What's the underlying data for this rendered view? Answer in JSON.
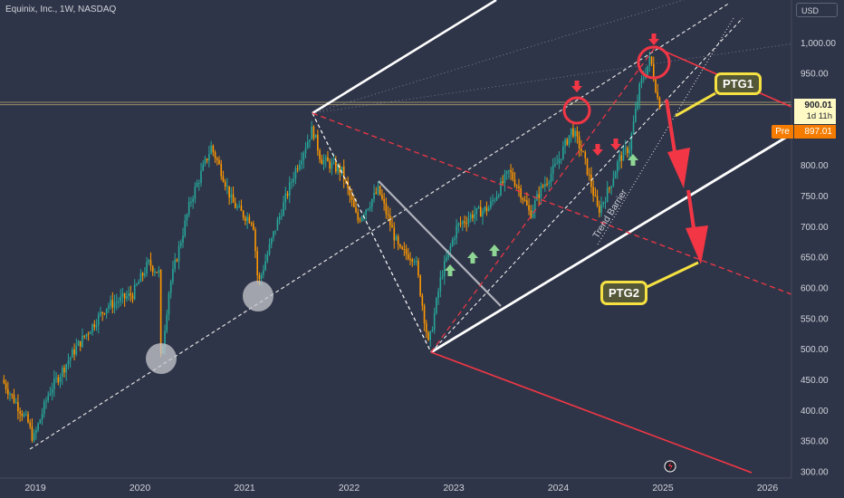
{
  "header": {
    "symbol_title": "Equinix, Inc., 1W, NASDAQ",
    "currency": "USD"
  },
  "price_tag": {
    "last_price": "900.01",
    "countdown": "1d 11h"
  },
  "pre_market": {
    "label": "Pre",
    "price": "897.01"
  },
  "annotations": {
    "ptg1": "PTG1",
    "ptg2": "PTG2",
    "trend_barrier": "Trend Barrier"
  },
  "colors": {
    "background": "#2f3548",
    "bull": "#26a69a",
    "bear": "#ff9800",
    "red_line": "#f23645",
    "callout_border": "#f5e142",
    "up_arrow": "#8fd694",
    "down_arrow": "#f23645"
  },
  "chart_data": {
    "type": "candlestick",
    "title": "Equinix, Inc., 1W, NASDAQ",
    "x_tick_labels": [
      "2019",
      "2020",
      "2021",
      "2022",
      "2023",
      "2024",
      "2025",
      "2026"
    ],
    "y_tick_labels": [
      "1,000.00",
      "950.00",
      "900.00",
      "850.00",
      "800.00",
      "750.00",
      "700.00",
      "650.00",
      "600.00",
      "550.00",
      "500.00",
      "450.00",
      "400.00",
      "350.00",
      "300.00"
    ],
    "ylim": [
      300,
      1020
    ],
    "xlim": [
      2018.7,
      2026.3
    ],
    "grid": false,
    "price_path": [
      [
        2018.7,
        450
      ],
      [
        2018.95,
        380
      ],
      [
        2019.0,
        352
      ],
      [
        2019.15,
        430
      ],
      [
        2019.4,
        500
      ],
      [
        2019.7,
        570
      ],
      [
        2019.95,
        590
      ],
      [
        2020.1,
        640
      ],
      [
        2020.2,
        625
      ],
      [
        2020.22,
        480
      ],
      [
        2020.3,
        600
      ],
      [
        2020.5,
        740
      ],
      [
        2020.7,
        830
      ],
      [
        2020.8,
        790
      ],
      [
        2020.9,
        740
      ],
      [
        2021.0,
        720
      ],
      [
        2021.1,
        710
      ],
      [
        2021.15,
        605
      ],
      [
        2021.3,
        690
      ],
      [
        2021.5,
        790
      ],
      [
        2021.67,
        860
      ],
      [
        2021.75,
        810
      ],
      [
        2021.8,
        805
      ],
      [
        2021.95,
        790
      ],
      [
        2022.1,
        710
      ],
      [
        2022.3,
        760
      ],
      [
        2022.5,
        660
      ],
      [
        2022.65,
        650
      ],
      [
        2022.78,
        505
      ],
      [
        2022.9,
        620
      ],
      [
        2023.05,
        700
      ],
      [
        2023.2,
        720
      ],
      [
        2023.35,
        730
      ],
      [
        2023.55,
        790
      ],
      [
        2023.65,
        760
      ],
      [
        2023.75,
        720
      ],
      [
        2023.85,
        760
      ],
      [
        2024.0,
        800
      ],
      [
        2024.15,
        860
      ],
      [
        2024.25,
        820
      ],
      [
        2024.3,
        790
      ],
      [
        2024.4,
        725
      ],
      [
        2024.5,
        760
      ],
      [
        2024.6,
        810
      ],
      [
        2024.7,
        830
      ],
      [
        2024.8,
        930
      ],
      [
        2024.9,
        975
      ],
      [
        2024.98,
        900
      ]
    ],
    "trendlines": [
      {
        "name": "lower dashed support",
        "points": [
          [
            2019.0,
            350
          ],
          [
            2024.1,
            890
          ]
        ]
      },
      {
        "name": "upper white channel",
        "points": [
          [
            2021.67,
            888
          ],
          [
            2023.3,
            1170
          ]
        ]
      },
      {
        "name": "lower white channel",
        "points": [
          [
            2022.78,
            494
          ],
          [
            2026.3,
            880
          ]
        ]
      },
      {
        "name": "red target line",
        "points": [
          [
            2022.78,
            494
          ],
          [
            2025.8,
            300
          ]
        ]
      }
    ],
    "targets": [
      {
        "label": "PTG1",
        "value": 900.01
      },
      {
        "label": "PTG2",
        "value": 650
      }
    ]
  }
}
